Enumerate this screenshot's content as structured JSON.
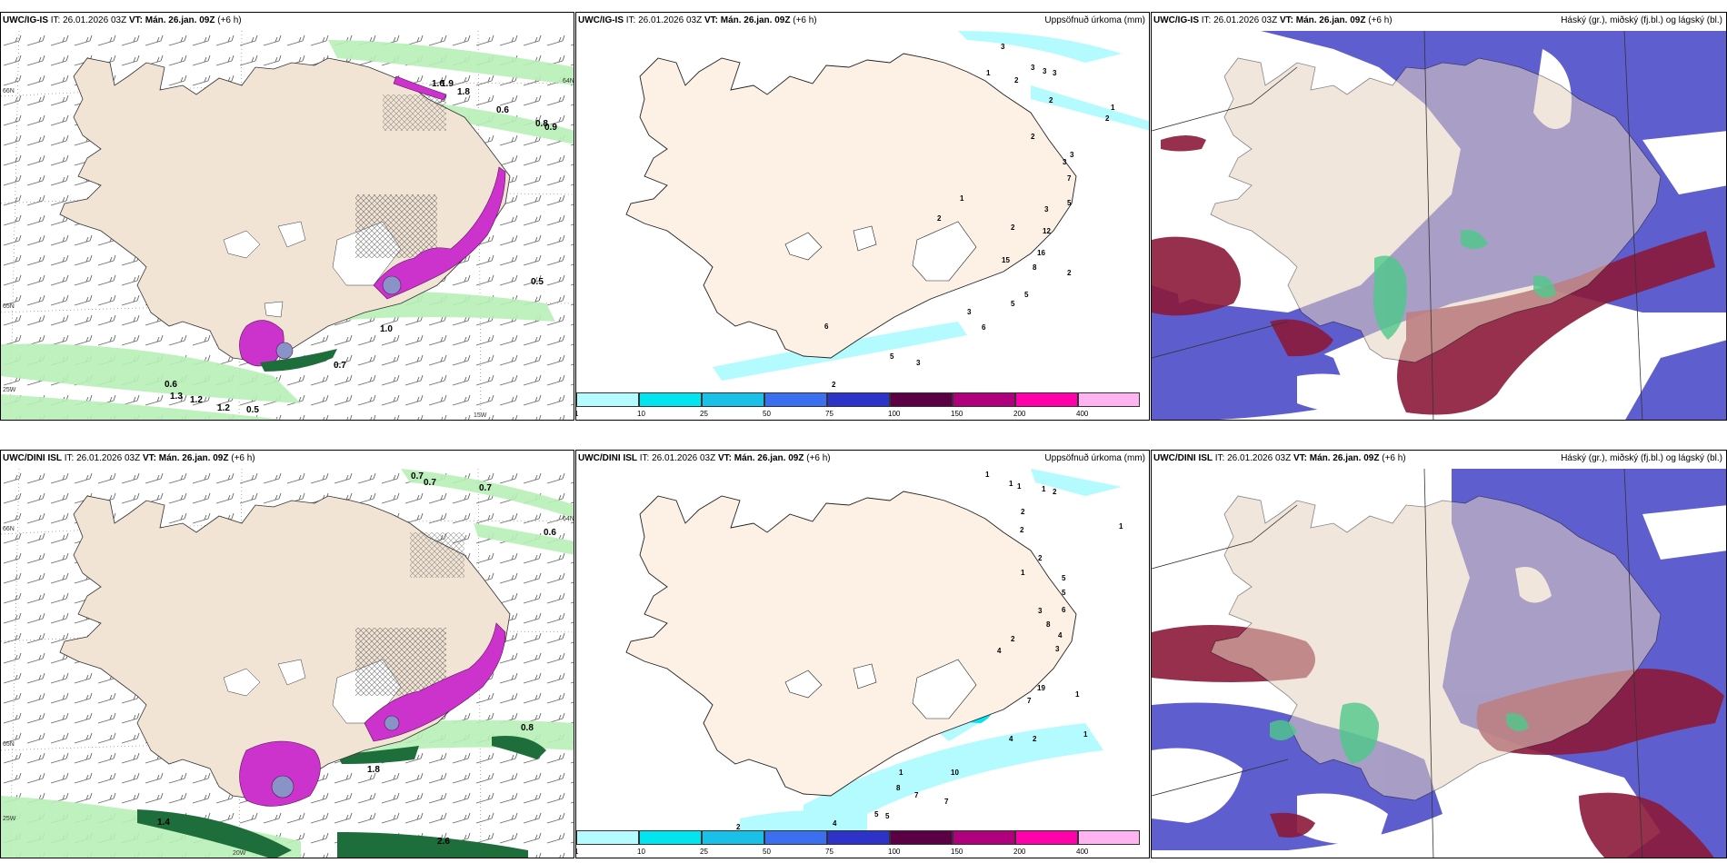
{
  "header": {
    "it_label": "IT: 26.01.2026 03Z",
    "vt_label": "VT: Mán. 26.jan. 09Z",
    "lead_label": "(+6 h)"
  },
  "rows": [
    {
      "model": "UWC/IG-IS",
      "panel_precip_title": "Uppsöfnuð úrkoma (mm)",
      "panel_cloud_title": "Háský (gr.), miðský (fj.bl.) og lágský (bl.)",
      "wind_labels": [
        "1.6",
        "1.8",
        "1.9",
        "0.6",
        "0.8",
        "0.9",
        "0.5",
        "1.0",
        "0.7",
        "0.6",
        "1.3",
        "1.2",
        "1.2",
        "0.5"
      ],
      "precip_labels": [
        "3",
        "1",
        "2",
        "3",
        "3",
        "3",
        "2",
        "2",
        "1",
        "2",
        "3",
        "7",
        "3",
        "5",
        "1",
        "2",
        "3",
        "12",
        "2",
        "16",
        "15",
        "8",
        "2",
        "6",
        "5",
        "5",
        "3",
        "6",
        "5",
        "3",
        "2"
      ],
      "axis_labels": [
        "66N",
        "65N",
        "64N",
        "25W",
        "15W"
      ]
    },
    {
      "model": "UWC/DINI ISL",
      "panel_precip_title": "Uppsöfnuð úrkoma (mm)",
      "panel_cloud_title": "Háský (gr.), miðský (fj.bl.) og lágský (bl.)",
      "wind_labels": [
        "0.7",
        "0.7",
        "0.7",
        "0.6",
        "0.8",
        "1.8",
        "1.4",
        "2.6"
      ],
      "precip_labels": [
        "1",
        "1",
        "1",
        "1",
        "2",
        "2",
        "1",
        "2",
        "1",
        "2",
        "5",
        "5",
        "3",
        "8",
        "6",
        "4",
        "2",
        "4",
        "19",
        "3",
        "1",
        "7",
        "4",
        "2",
        "1",
        "10",
        "8",
        "7",
        "7",
        "5",
        "5",
        "4",
        "2",
        "1"
      ],
      "axis_labels": [
        "66N",
        "65N",
        "64N",
        "25W",
        "20W"
      ]
    }
  ],
  "colorbar": {
    "ticks": [
      "1",
      "10",
      "25",
      "50",
      "75",
      "100",
      "150",
      "200",
      "400"
    ],
    "colors": [
      "#b3fbff",
      "#00e5f0",
      "#19c1e8",
      "#3a6ff0",
      "#2d33c8",
      "#5c0045",
      "#b0007e",
      "#ff00aa",
      "#ffb3f0"
    ]
  },
  "colors": {
    "land": "#f1e4d4",
    "land_top": "#e6d3bf",
    "sea_light": "#b3fbff",
    "cloud_blue": "#5555cc",
    "cloud_red": "#8b1a3a",
    "cloud_green": "#4fc98a",
    "wind_green": "#b8f0b8",
    "wind_dark": "#1e6e3c",
    "precip_magenta": "#cc33cc"
  }
}
